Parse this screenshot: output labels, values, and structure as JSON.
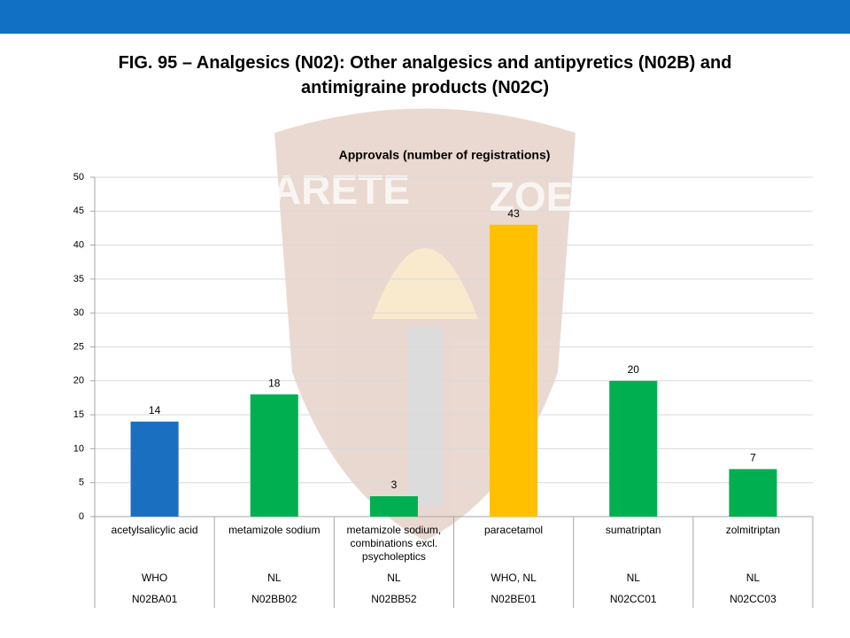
{
  "slide_title": "FIG. 95 – Analgesics (N02): Other analgesics and antipyretics (N02B) and antimigraine products (N02C)",
  "watermark": [
    "ARETE",
    "ZOE"
  ],
  "chart_data": {
    "type": "bar",
    "title": "Approvals (number of registrations)",
    "categories": [
      "acetylsalicylic acid",
      "metamizole sodium",
      "metamizole sodium, combinations excl. psycholeptics",
      "paracetamol",
      "sumatriptan",
      "zolmitriptan"
    ],
    "sources": [
      "WHO",
      "NL",
      "NL",
      "WHO, NL",
      "NL",
      "NL"
    ],
    "codes": [
      "N02BA01",
      "N02BB02",
      "N02BB52",
      "N02BE01",
      "N02CC01",
      "N02CC03"
    ],
    "values": [
      14,
      18,
      3,
      43,
      20,
      7
    ],
    "colors": [
      "#1a6fc0",
      "#00b050",
      "#00b050",
      "#ffc000",
      "#00b050",
      "#00b050"
    ],
    "ylim": [
      0,
      50
    ],
    "yticks": [
      0,
      5,
      10,
      15,
      20,
      25,
      30,
      35,
      40,
      45,
      50
    ],
    "grid": true
  }
}
